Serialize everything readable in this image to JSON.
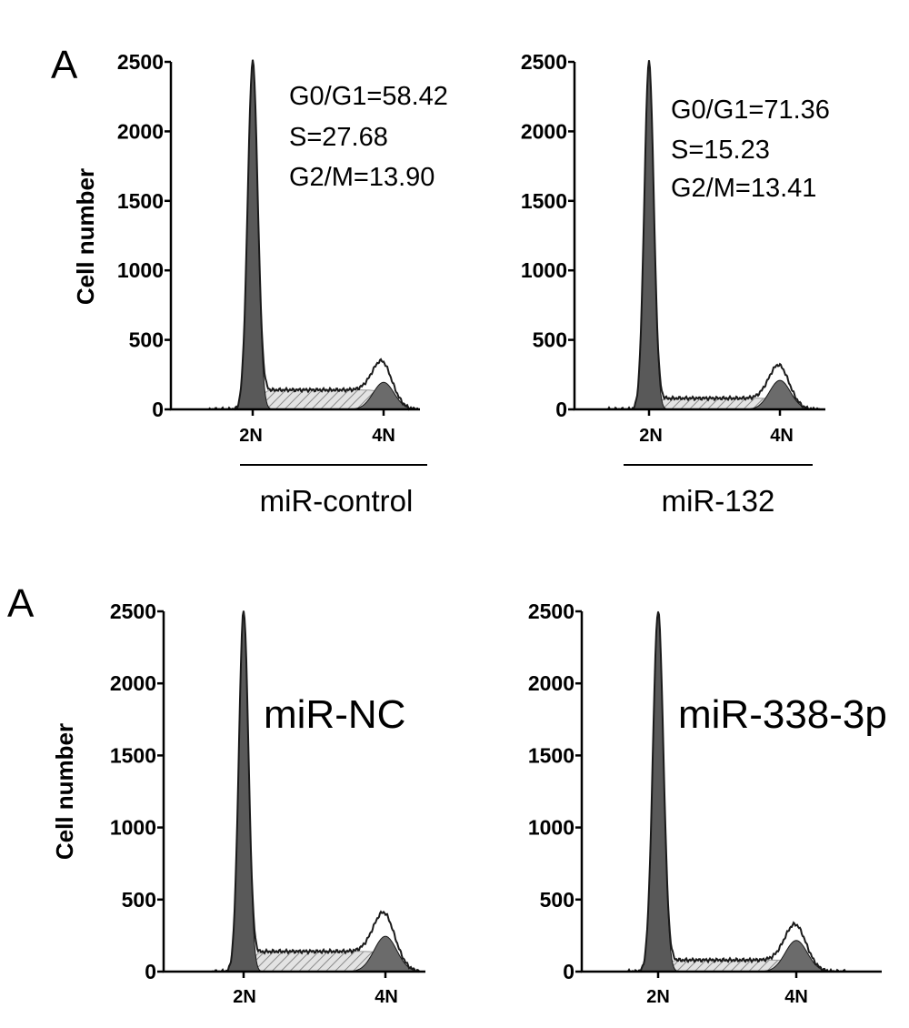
{
  "colors": {
    "g1_fill": "#595959",
    "g2_fill": "#6b6b6b",
    "s_fill": "#d9d9d9",
    "s_hatch": "#8a8a8a",
    "outline": "#1a1a1a",
    "axis": "#000000"
  },
  "figure": {
    "top_letter": "A",
    "bottom_letter": "A",
    "ylabel_top": "Cell number",
    "ylabel_bottom": "Cell number"
  },
  "chart_data": [
    {
      "type": "area",
      "id": "miR-control",
      "group_label": "miR-control",
      "ylabel": "Cell number",
      "xlabel": "",
      "x_ticks": [
        "2N",
        "4N"
      ],
      "y_ticks": [
        "0",
        "500",
        "1000",
        "1500",
        "2000",
        "2500"
      ],
      "ylim": [
        0,
        2500
      ],
      "annotations": [
        "G0/G1=58.42",
        "S=27.68",
        "G2/M=13.90"
      ],
      "phases": {
        "G0_G1": 58.42,
        "S": 27.68,
        "G2_M": 13.9
      },
      "peak_2N": 2500,
      "peak_4N": 270,
      "s_level": 140,
      "width_2N": 0.9
    },
    {
      "type": "area",
      "id": "miR-132",
      "group_label": "miR-132",
      "ylabel": "",
      "xlabel": "",
      "x_ticks": [
        "2N",
        "4N"
      ],
      "y_ticks": [
        "0",
        "500",
        "1000",
        "1500",
        "2000",
        "2500"
      ],
      "ylim": [
        0,
        2500
      ],
      "annotations": [
        "G0/G1=71.36",
        "S=15.23",
        "G2/M=13.41"
      ],
      "phases": {
        "G0_G1": 71.36,
        "S": 15.23,
        "G2_M": 13.41
      },
      "peak_2N": 2500,
      "peak_4N": 290,
      "s_level": 80,
      "width_2N": 0.85
    },
    {
      "type": "area",
      "id": "miR-NC",
      "ylabel": "Cell number",
      "xlabel": "",
      "inset_label": "miR-NC",
      "x_ticks": [
        "2N",
        "4N"
      ],
      "y_ticks": [
        "0",
        "500",
        "1000",
        "1500",
        "2000",
        "2500"
      ],
      "ylim": [
        0,
        2500
      ],
      "peak_2N": 2500,
      "peak_4N": 340,
      "s_level": 140,
      "width_2N": 0.8
    },
    {
      "type": "area",
      "id": "miR-338-3p",
      "ylabel": "",
      "xlabel": "",
      "inset_label": "miR-338-3p",
      "x_ticks": [
        "2N",
        "4N"
      ],
      "y_ticks": [
        "0",
        "500",
        "1000",
        "1500",
        "2000",
        "2500"
      ],
      "ylim": [
        0,
        2500
      ],
      "peak_2N": 2500,
      "peak_4N": 300,
      "s_level": 80,
      "width_2N": 0.9
    }
  ]
}
